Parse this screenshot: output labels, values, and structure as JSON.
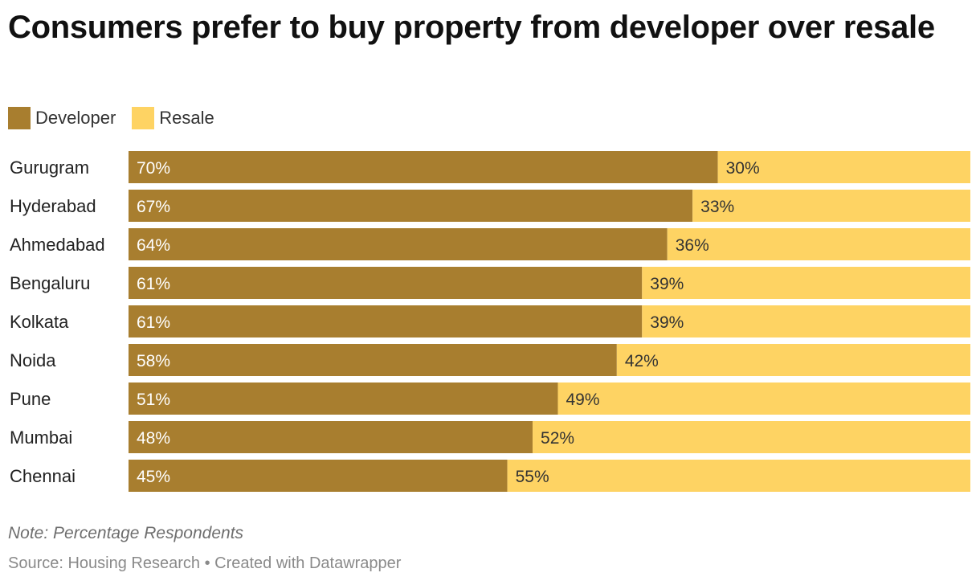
{
  "chart_data": {
    "type": "bar",
    "orientation": "horizontal",
    "stacked": true,
    "title": "Consumers prefer to buy property from developer over resale",
    "categories": [
      "Gurugram",
      "Hyderabad",
      "Ahmedabad",
      "Bengaluru",
      "Kolkata",
      "Noida",
      "Pune",
      "Mumbai",
      "Chennai"
    ],
    "series": [
      {
        "name": "Developer",
        "color": "#a87e2f",
        "label_color": "#ffffff",
        "values": [
          70,
          67,
          64,
          61,
          61,
          58,
          51,
          48,
          45
        ]
      },
      {
        "name": "Resale",
        "color": "#fed363",
        "label_color": "#333333",
        "values": [
          30,
          33,
          36,
          39,
          39,
          42,
          49,
          52,
          55
        ]
      }
    ],
    "value_suffix": "%",
    "xlim": [
      0,
      100
    ],
    "legend": "top-left",
    "grid": false
  },
  "footer": {
    "note": "Note: Percentage Respondents",
    "source": "Source: Housing Research • Created with Datawrapper"
  }
}
